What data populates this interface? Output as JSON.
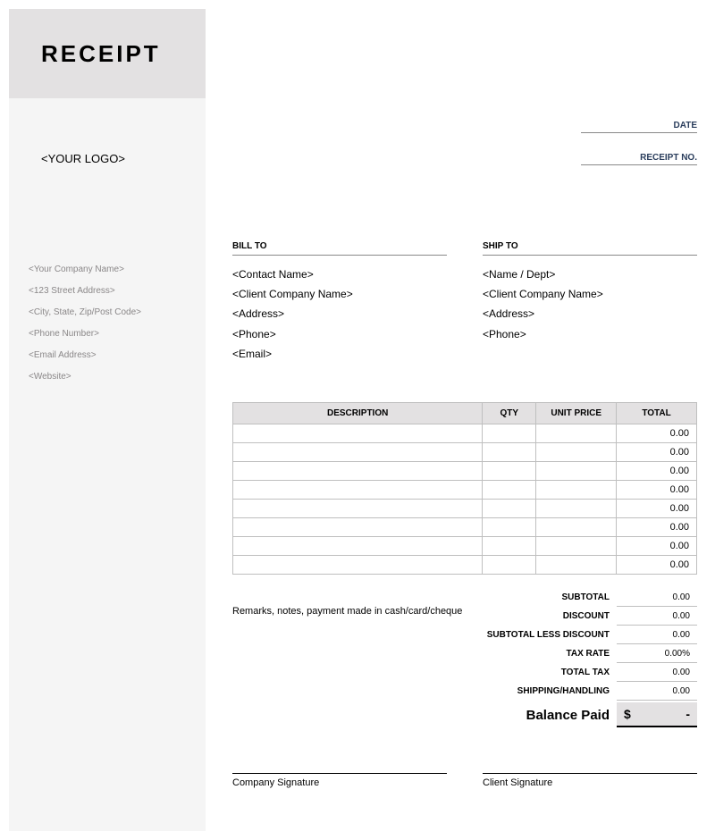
{
  "colors": {
    "sidebar_bg": "#f5f5f5",
    "header_bg": "#e3e1e2",
    "accent_text": "#2a3d5c",
    "muted_text": "#8a8788",
    "border": "#bfbfbf",
    "balance_bg": "#e3e1e2"
  },
  "header": {
    "title": "RECEIPT",
    "logo_placeholder": "<YOUR LOGO>"
  },
  "company": {
    "name": "<Your Company Name>",
    "address": "<123 Street Address>",
    "city_state_zip": "<City, State, Zip/Post Code>",
    "phone": "<Phone Number>",
    "email": "<Email Address>",
    "website": "<Website>"
  },
  "meta": {
    "date_label": "DATE",
    "receipt_no_label": "RECEIPT NO."
  },
  "bill_to": {
    "label": "BILL TO",
    "contact": "<Contact Name>",
    "company": "<Client Company Name>",
    "address": "<Address>",
    "phone": "<Phone>",
    "email": "<Email>"
  },
  "ship_to": {
    "label": "SHIP TO",
    "name_dept": "<Name / Dept>",
    "company": "<Client Company Name>",
    "address": "<Address>",
    "phone": "<Phone>"
  },
  "table": {
    "columns": {
      "description": "DESCRIPTION",
      "qty": "QTY",
      "unit_price": "UNIT PRICE",
      "total": "TOTAL"
    },
    "rows": [
      {
        "description": "",
        "qty": "",
        "unit_price": "",
        "total": "0.00"
      },
      {
        "description": "",
        "qty": "",
        "unit_price": "",
        "total": "0.00"
      },
      {
        "description": "",
        "qty": "",
        "unit_price": "",
        "total": "0.00"
      },
      {
        "description": "",
        "qty": "",
        "unit_price": "",
        "total": "0.00"
      },
      {
        "description": "",
        "qty": "",
        "unit_price": "",
        "total": "0.00"
      },
      {
        "description": "",
        "qty": "",
        "unit_price": "",
        "total": "0.00"
      },
      {
        "description": "",
        "qty": "",
        "unit_price": "",
        "total": "0.00"
      },
      {
        "description": "",
        "qty": "",
        "unit_price": "",
        "total": "0.00"
      }
    ]
  },
  "remarks": "Remarks, notes, payment made in cash/card/cheque",
  "summary": {
    "subtotal": {
      "label": "SUBTOTAL",
      "value": "0.00"
    },
    "discount": {
      "label": "DISCOUNT",
      "value": "0.00"
    },
    "subtotal_less_discount": {
      "label": "SUBTOTAL LESS DISCOUNT",
      "value": "0.00"
    },
    "tax_rate": {
      "label": "TAX RATE",
      "value": "0.00%"
    },
    "total_tax": {
      "label": "TOTAL TAX",
      "value": "0.00"
    },
    "shipping": {
      "label": "SHIPPING/HANDLING",
      "value": "0.00"
    }
  },
  "balance": {
    "label": "Balance Paid",
    "currency": "$",
    "amount": "-"
  },
  "signatures": {
    "company": "Company Signature",
    "client": "Client Signature"
  }
}
